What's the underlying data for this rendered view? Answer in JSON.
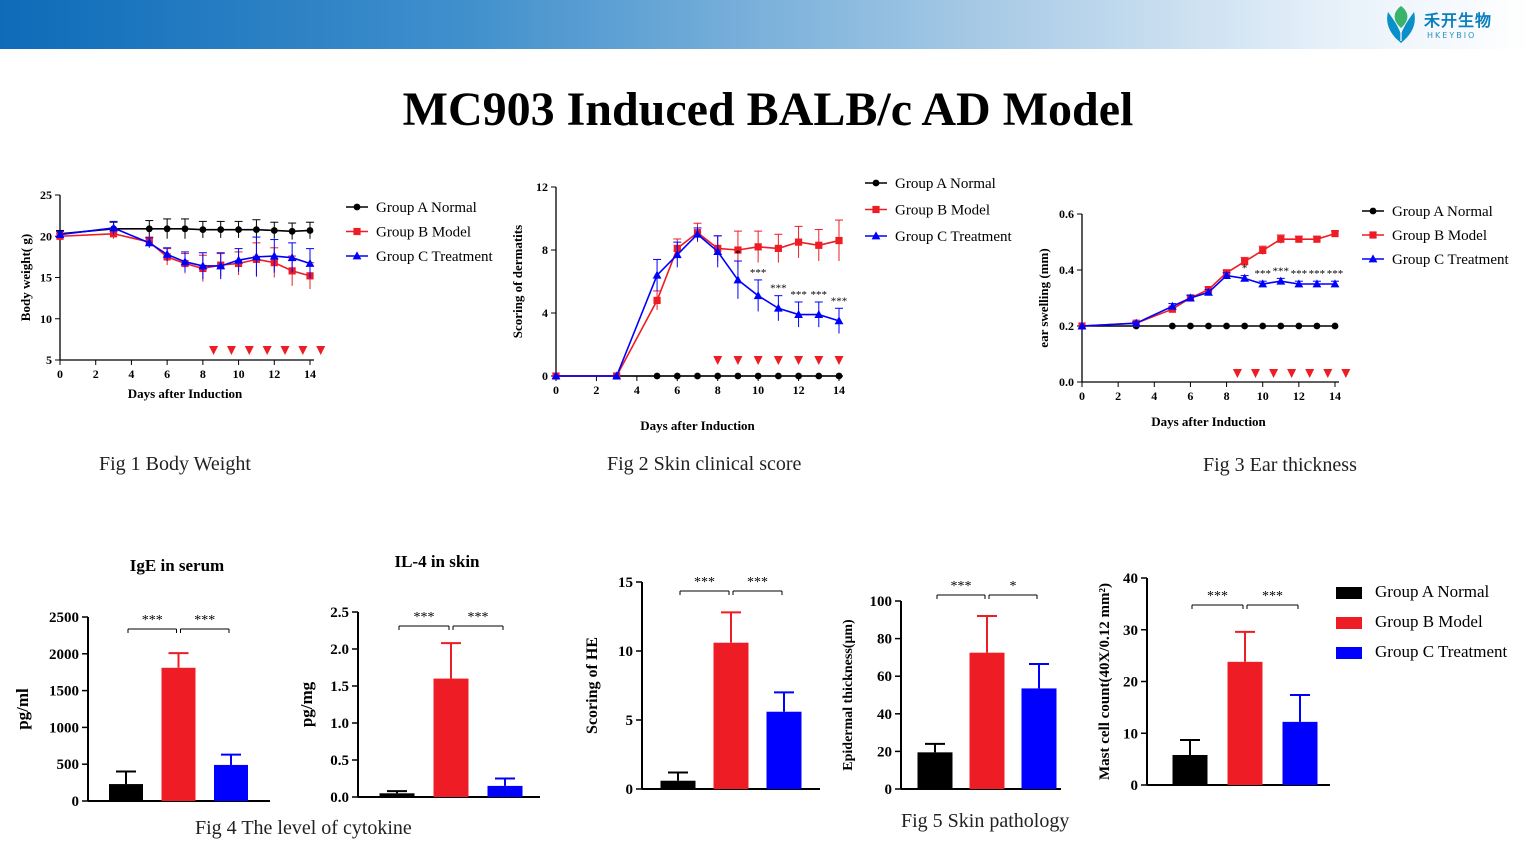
{
  "header": {
    "logo_cn": "禾开生物",
    "logo_en": "HKEYBIO",
    "title": "MC903 Induced BALB/c AD Model"
  },
  "colors": {
    "group_a": "#000000",
    "group_b": "#ee1c24",
    "group_c": "#0000ff",
    "arrow": "#ee1c24"
  },
  "group_labels": [
    "Group A Normal",
    "Group B Model",
    "Group C Treatment"
  ],
  "captions": {
    "fig1": "Fig 1 Body Weight",
    "fig2": "Fig 2 Skin clinical score",
    "fig3": "Fig 3 Ear thickness",
    "fig4": "Fig 4 The level of cytokine",
    "fig5": "Fig 5 Skin pathology"
  },
  "chart_data": [
    {
      "id": "fig1",
      "type": "line",
      "title": "",
      "xlabel": "Days after Induction",
      "ylabel": "Body weight( g)",
      "xlim": [
        0,
        14
      ],
      "ylim": [
        5,
        25
      ],
      "xticks": [
        0,
        2,
        4,
        6,
        8,
        10,
        12,
        14
      ],
      "yticks": [
        5,
        10,
        15,
        20,
        25
      ],
      "legend": "right",
      "treatment_arrows_days": [
        8.6,
        9.6,
        10.6,
        11.6,
        12.6,
        13.6,
        14.6
      ],
      "series": [
        {
          "name": "Group A Normal",
          "color": "#000000",
          "marker": "circle",
          "x": [
            0,
            3,
            5,
            6,
            7,
            8,
            9,
            10,
            11,
            12,
            13,
            14
          ],
          "y": [
            20.3,
            20.9,
            20.9,
            20.9,
            20.9,
            20.8,
            20.8,
            20.8,
            20.8,
            20.7,
            20.6,
            20.7
          ],
          "err": [
            0.4,
            0.8,
            1.0,
            1.2,
            1.2,
            1.0,
            1.0,
            1.0,
            1.2,
            1.0,
            1.0,
            1.0
          ]
        },
        {
          "name": "Group B Model",
          "color": "#ee1c24",
          "marker": "square",
          "x": [
            0,
            3,
            5,
            6,
            7,
            8,
            9,
            10,
            11,
            12,
            13,
            14
          ],
          "y": [
            20.0,
            20.3,
            19.3,
            17.5,
            16.7,
            16.1,
            16.5,
            16.7,
            17.2,
            16.8,
            15.8,
            15.2
          ],
          "err": [
            0.4,
            0.6,
            0.6,
            1.0,
            1.2,
            1.6,
            1.4,
            1.4,
            2.0,
            1.8,
            1.8,
            1.6
          ]
        },
        {
          "name": "Group C Treatment",
          "color": "#0000ff",
          "marker": "triangle",
          "x": [
            0,
            3,
            5,
            6,
            7,
            8,
            9,
            10,
            11,
            12,
            13,
            14
          ],
          "y": [
            20.2,
            21.0,
            19.2,
            17.8,
            16.9,
            16.4,
            16.4,
            17.1,
            17.5,
            17.6,
            17.4,
            16.7
          ],
          "err": [
            0.4,
            0.8,
            0.6,
            0.8,
            1.2,
            1.6,
            1.6,
            1.4,
            2.4,
            2.0,
            1.8,
            1.8
          ]
        }
      ]
    },
    {
      "id": "fig2",
      "type": "line",
      "title": "",
      "xlabel": "Days after Induction",
      "ylabel": "Scoring of dermatits",
      "xlim": [
        0,
        14
      ],
      "ylim": [
        0,
        12
      ],
      "xticks": [
        0,
        2,
        4,
        6,
        8,
        10,
        12,
        14
      ],
      "yticks": [
        0,
        4,
        8,
        12
      ],
      "legend": "top-right",
      "treatment_arrows_days": [
        8,
        9,
        10,
        11,
        12,
        13,
        14
      ],
      "significance_labels": [
        {
          "day": 9,
          "label": "*"
        },
        {
          "day": 10,
          "label": "***"
        },
        {
          "day": 11,
          "label": "***"
        },
        {
          "day": 12,
          "label": "***"
        },
        {
          "day": 13,
          "label": "***"
        },
        {
          "day": 14,
          "label": "***"
        }
      ],
      "series": [
        {
          "name": "Group A Normal",
          "color": "#000000",
          "marker": "circle",
          "x": [
            0,
            3,
            5,
            6,
            7,
            8,
            9,
            10,
            11,
            12,
            13,
            14
          ],
          "y": [
            0,
            0,
            0,
            0,
            0,
            0,
            0,
            0,
            0,
            0,
            0,
            0
          ],
          "err": [
            0,
            0,
            0,
            0,
            0,
            0,
            0,
            0,
            0,
            0,
            0,
            0
          ]
        },
        {
          "name": "Group B Model",
          "color": "#ee1c24",
          "marker": "square",
          "x": [
            0,
            3,
            5,
            6,
            7,
            8,
            9,
            10,
            11,
            12,
            13,
            14
          ],
          "y": [
            0,
            0,
            4.8,
            8.1,
            9.1,
            8.1,
            8.0,
            8.2,
            8.1,
            8.5,
            8.3,
            8.6
          ],
          "err": [
            0,
            0,
            0.6,
            0.6,
            0.6,
            0.8,
            1.2,
            1.0,
            0.9,
            1.0,
            1.0,
            1.3
          ]
        },
        {
          "name": "Group C Treatment",
          "color": "#0000ff",
          "marker": "triangle",
          "x": [
            0,
            3,
            5,
            6,
            7,
            8,
            9,
            10,
            11,
            12,
            13,
            14
          ],
          "y": [
            0,
            0,
            6.4,
            7.7,
            9.0,
            7.9,
            6.1,
            5.1,
            4.3,
            3.9,
            3.9,
            3.5
          ],
          "err": [
            0,
            0,
            1.0,
            0.8,
            0.4,
            1.0,
            1.2,
            1.0,
            0.8,
            0.8,
            0.8,
            0.8
          ]
        }
      ]
    },
    {
      "id": "fig3",
      "type": "line",
      "title": "",
      "xlabel": "Days after Induction",
      "ylabel": "ear swelling (mm)",
      "xlim": [
        0,
        14
      ],
      "ylim": [
        0,
        0.6
      ],
      "xticks": [
        0,
        2,
        4,
        6,
        8,
        10,
        12,
        14
      ],
      "yticks": [
        "0.0",
        "0.2",
        "0.4",
        "0.6"
      ],
      "legend": "right",
      "treatment_arrows_days": [
        8.6,
        9.6,
        10.6,
        11.6,
        12.6,
        13.6,
        14.6
      ],
      "significance_labels": [
        {
          "day": 9,
          "label": "*"
        },
        {
          "day": 10,
          "label": "***"
        },
        {
          "day": 11,
          "label": "***"
        },
        {
          "day": 12,
          "label": "***"
        },
        {
          "day": 13,
          "label": "***"
        },
        {
          "day": 14,
          "label": "***"
        }
      ],
      "series": [
        {
          "name": "Group A Normal",
          "color": "#000000",
          "marker": "circle",
          "x": [
            0,
            3,
            5,
            6,
            7,
            8,
            9,
            10,
            11,
            12,
            13,
            14
          ],
          "y": [
            0.2,
            0.2,
            0.2,
            0.2,
            0.2,
            0.2,
            0.2,
            0.2,
            0.2,
            0.2,
            0.2,
            0.2
          ],
          "err": [
            0,
            0,
            0,
            0,
            0,
            0,
            0,
            0,
            0,
            0,
            0,
            0
          ]
        },
        {
          "name": "Group B Model",
          "color": "#ee1c24",
          "marker": "square",
          "x": [
            0,
            3,
            5,
            6,
            7,
            8,
            9,
            10,
            11,
            12,
            13,
            14
          ],
          "y": [
            0.2,
            0.21,
            0.26,
            0.3,
            0.33,
            0.39,
            0.43,
            0.47,
            0.51,
            0.51,
            0.51,
            0.53
          ],
          "err": [
            0,
            0.005,
            0.01,
            0.01,
            0.01,
            0.01,
            0.015,
            0.015,
            0.015,
            0.01,
            0.01,
            0.01
          ]
        },
        {
          "name": "Group C Treatment",
          "color": "#0000ff",
          "marker": "triangle",
          "x": [
            0,
            3,
            5,
            6,
            7,
            8,
            9,
            10,
            11,
            12,
            13,
            14
          ],
          "y": [
            0.2,
            0.21,
            0.27,
            0.3,
            0.32,
            0.38,
            0.37,
            0.35,
            0.36,
            0.35,
            0.35,
            0.35
          ],
          "err": [
            0,
            0.005,
            0.01,
            0.01,
            0.01,
            0.01,
            0.01,
            0.01,
            0.01,
            0.01,
            0.01,
            0.01
          ]
        }
      ]
    },
    {
      "id": "ige",
      "type": "bar",
      "title": "IgE in serum",
      "xlabel": "",
      "ylabel": "pg/ml",
      "ylim": [
        0,
        2500
      ],
      "yticks": [
        0,
        500,
        1000,
        1500,
        2000,
        2500
      ],
      "categories": [
        "Group A Normal",
        "Group B Model",
        "Group C Treatment"
      ],
      "values": [
        230,
        1810,
        490
      ],
      "err": [
        170,
        200,
        140
      ],
      "significance": [
        {
          "from": 0,
          "to": 1,
          "label": "***"
        },
        {
          "from": 1,
          "to": 2,
          "label": "***"
        }
      ]
    },
    {
      "id": "il4",
      "type": "bar",
      "title": "IL-4 in skin",
      "xlabel": "",
      "ylabel": "pg/mg",
      "ylim": [
        0,
        2.5
      ],
      "yticks": [
        "0.0",
        "0.5",
        "1.0",
        "1.5",
        "2.0",
        "2.5"
      ],
      "categories": [
        "Group A Normal",
        "Group B Model",
        "Group C Treatment"
      ],
      "values": [
        0.05,
        1.6,
        0.15
      ],
      "err": [
        0.03,
        0.48,
        0.1
      ],
      "significance": [
        {
          "from": 0,
          "to": 1,
          "label": "***"
        },
        {
          "from": 1,
          "to": 2,
          "label": "***"
        }
      ]
    },
    {
      "id": "he",
      "type": "bar",
      "title": "",
      "xlabel": "",
      "ylabel": "Scoring of HE",
      "ylim": [
        0,
        15
      ],
      "yticks": [
        0,
        5,
        10,
        15
      ],
      "categories": [
        "Group A Normal",
        "Group B Model",
        "Group C Treatment"
      ],
      "values": [
        0.6,
        10.6,
        5.6
      ],
      "err": [
        0.6,
        2.2,
        1.4
      ],
      "significance": [
        {
          "from": 0,
          "to": 1,
          "label": "***"
        },
        {
          "from": 1,
          "to": 2,
          "label": "***"
        }
      ]
    },
    {
      "id": "epidermal",
      "type": "bar",
      "title": "",
      "xlabel": "",
      "ylabel": "Epidermal thickness(μm)",
      "ylim": [
        0,
        100
      ],
      "yticks": [
        0,
        20,
        40,
        60,
        80,
        100
      ],
      "categories": [
        "Group A Normal",
        "Group B Model",
        "Group C Treatment"
      ],
      "values": [
        19.5,
        72.5,
        53.5
      ],
      "err": [
        4.5,
        19.5,
        13
      ],
      "significance": [
        {
          "from": 0,
          "to": 1,
          "label": "***"
        },
        {
          "from": 1,
          "to": 2,
          "label": "*"
        }
      ]
    },
    {
      "id": "mast",
      "type": "bar",
      "title": "",
      "xlabel": "",
      "ylabel": "Mast cell count(40X/0.12 mm²)",
      "ylim": [
        0,
        40
      ],
      "yticks": [
        0,
        10,
        20,
        30,
        40
      ],
      "categories": [
        "Group A Normal",
        "Group B Model",
        "Group C Treatment"
      ],
      "values": [
        5.8,
        23.8,
        12.2
      ],
      "err": [
        2.9,
        5.8,
        5.2
      ],
      "significance": [
        {
          "from": 0,
          "to": 1,
          "label": "***"
        },
        {
          "from": 1,
          "to": 2,
          "label": "***"
        }
      ],
      "legend": "right"
    }
  ]
}
